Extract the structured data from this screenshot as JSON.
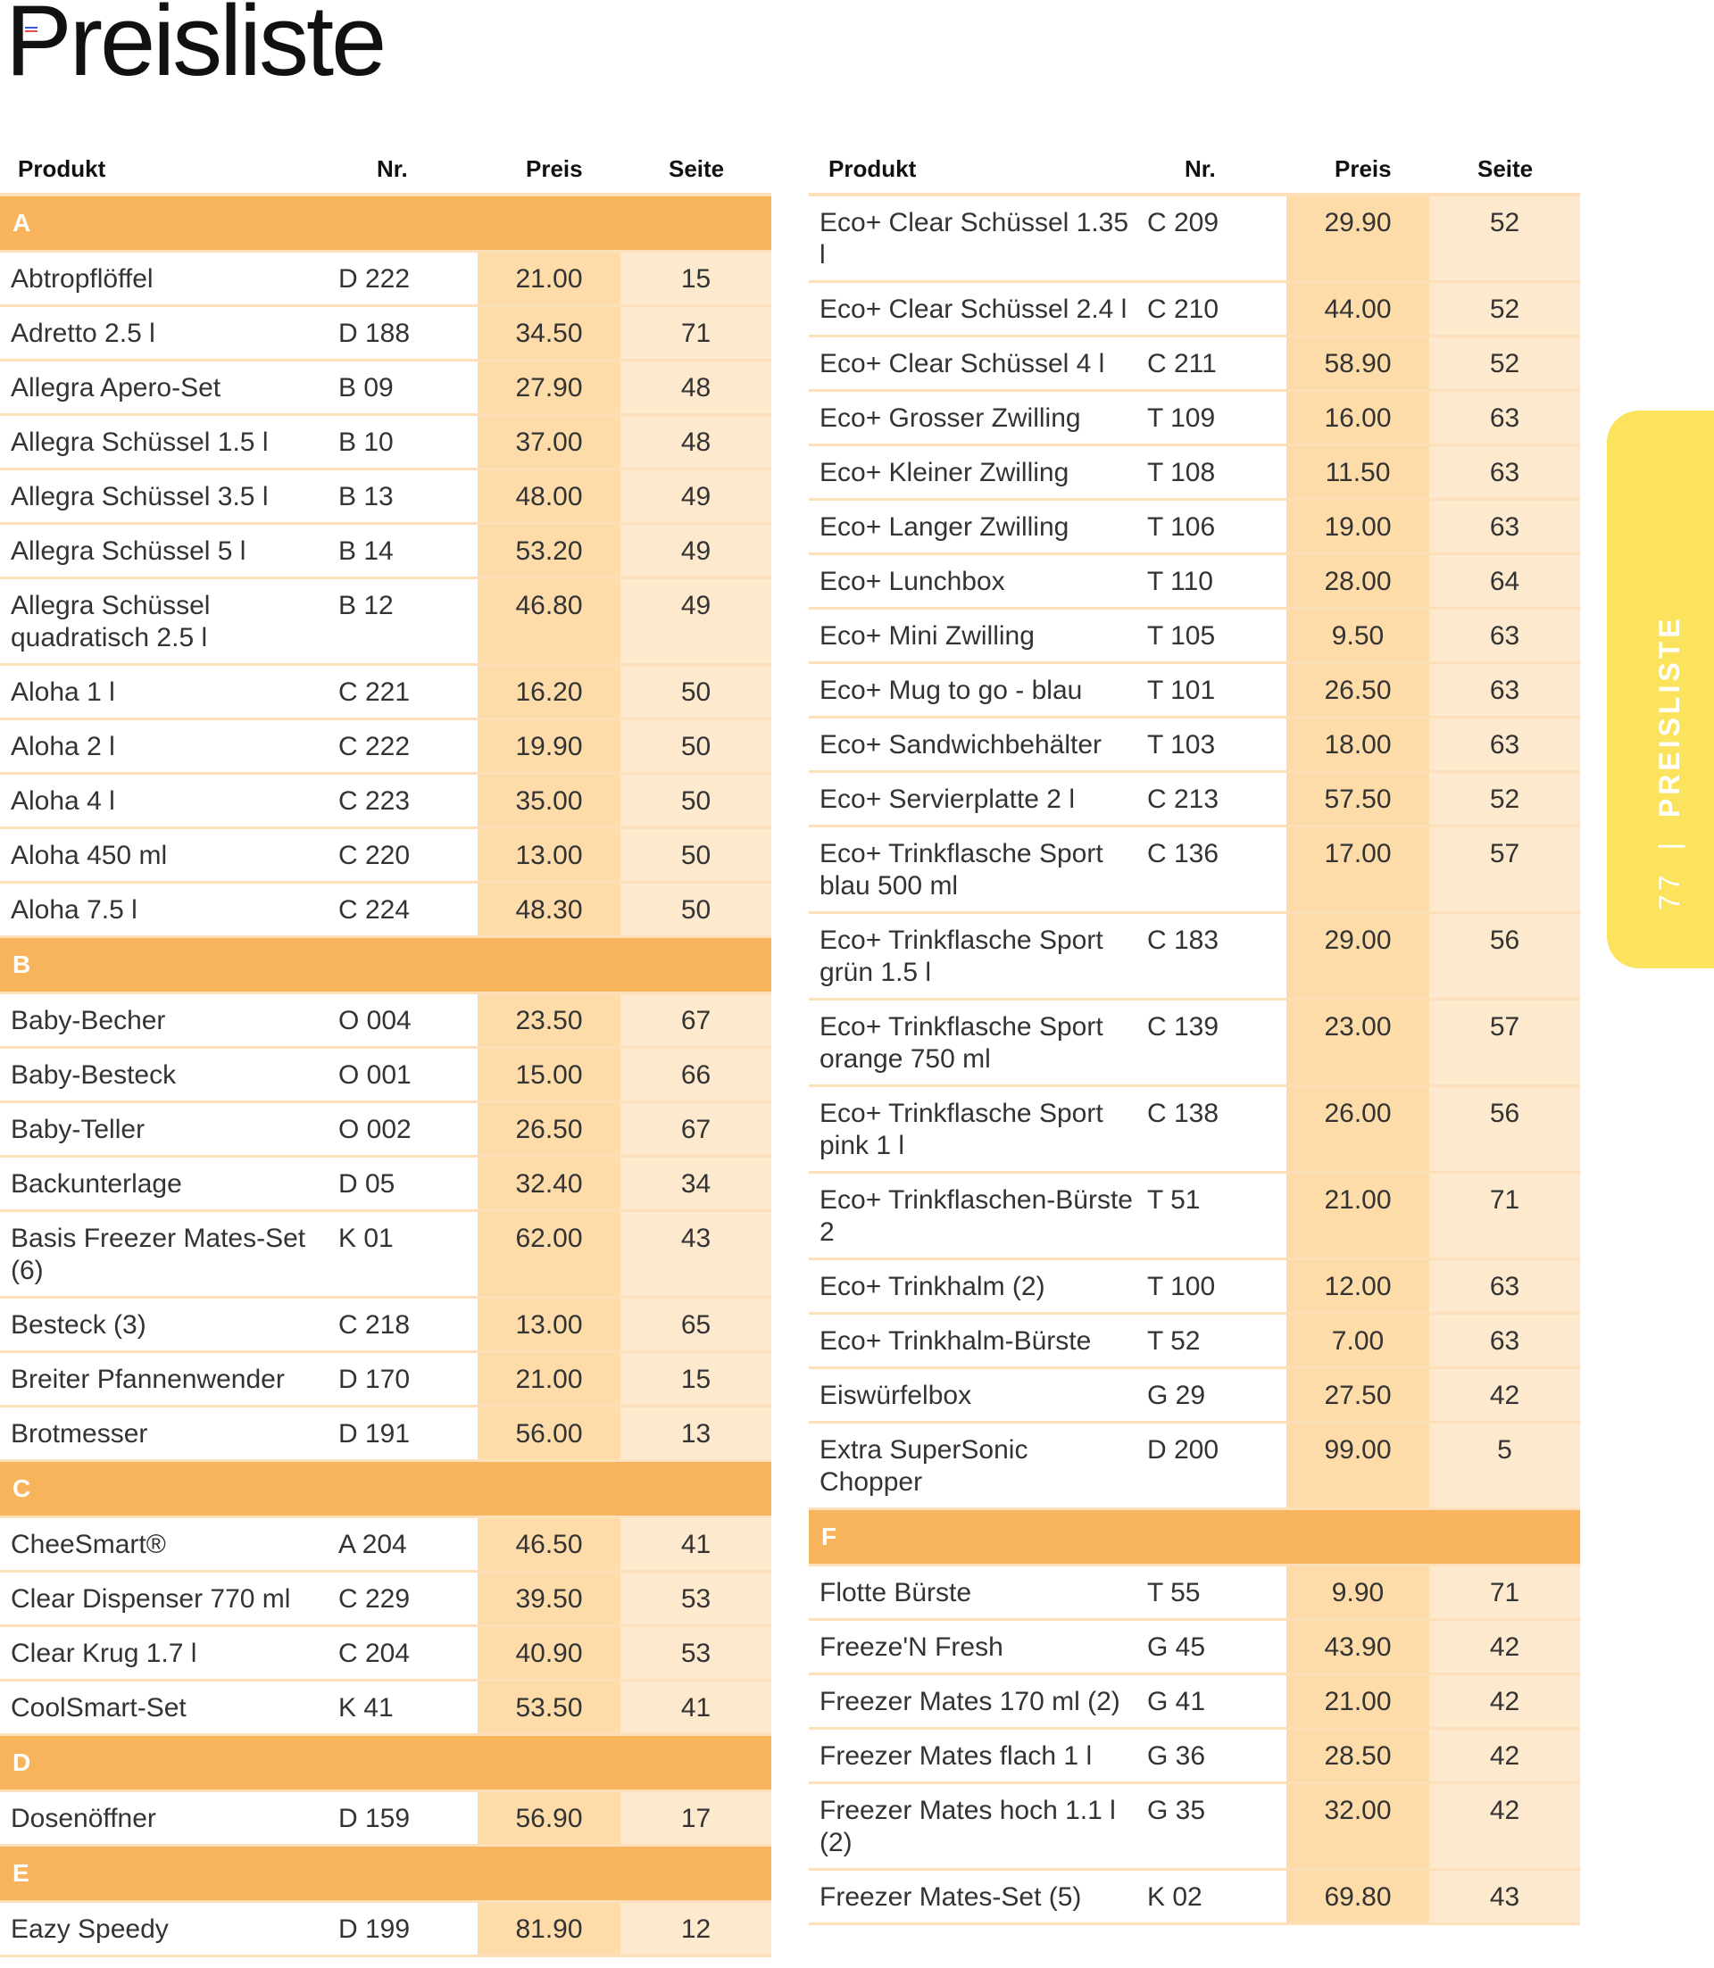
{
  "title": "Preisliste",
  "headers": {
    "produkt": "Produkt",
    "nr": "Nr.",
    "preis": "Preis",
    "seite": "Seite"
  },
  "side_tab": {
    "page": "77",
    "label": "PREISLISTE",
    "color": "#fbe35d"
  },
  "colors": {
    "section": "#f8b45c",
    "preis_col": "#fddcaa",
    "seite_col": "#fde9ce",
    "divider": "#fde0ba"
  },
  "left": [
    {
      "section": "A"
    },
    {
      "name": "Abtropflöffel",
      "nr": "D 222",
      "preis": "21.00",
      "seite": "15"
    },
    {
      "name": "Adretto 2.5 l",
      "nr": "D 188",
      "preis": "34.50",
      "seite": "71"
    },
    {
      "name": "Allegra Apero-Set",
      "nr": "B 09",
      "preis": "27.90",
      "seite": "48"
    },
    {
      "name": "Allegra Schüssel 1.5 l",
      "nr": "B 10",
      "preis": "37.00",
      "seite": "48"
    },
    {
      "name": "Allegra Schüssel 3.5 l",
      "nr": "B 13",
      "preis": "48.00",
      "seite": "49"
    },
    {
      "name": "Allegra Schüssel 5 l",
      "nr": "B 14",
      "preis": "53.20",
      "seite": "49"
    },
    {
      "name": "Allegra Schüssel quadratisch 2.5 l",
      "nr": "B 12",
      "preis": "46.80",
      "seite": "49"
    },
    {
      "name": "Aloha 1 l",
      "nr": "C 221",
      "preis": "16.20",
      "seite": "50"
    },
    {
      "name": "Aloha 2 l",
      "nr": "C 222",
      "preis": "19.90",
      "seite": "50"
    },
    {
      "name": "Aloha 4 l",
      "nr": "C 223",
      "preis": "35.00",
      "seite": "50"
    },
    {
      "name": "Aloha 450 ml",
      "nr": "C 220",
      "preis": "13.00",
      "seite": "50"
    },
    {
      "name": "Aloha 7.5 l",
      "nr": "C 224",
      "preis": "48.30",
      "seite": "50"
    },
    {
      "section": "B"
    },
    {
      "name": "Baby-Becher",
      "nr": "O 004",
      "preis": "23.50",
      "seite": "67"
    },
    {
      "name": "Baby-Besteck",
      "nr": "O 001",
      "preis": "15.00",
      "seite": "66"
    },
    {
      "name": "Baby-Teller",
      "nr": "O 002",
      "preis": "26.50",
      "seite": "67"
    },
    {
      "name": "Backunterlage",
      "nr": "D 05",
      "preis": "32.40",
      "seite": "34"
    },
    {
      "name": "Basis Freezer Mates-Set (6)",
      "nr": "K 01",
      "preis": "62.00",
      "seite": "43"
    },
    {
      "name": "Besteck (3)",
      "nr": "C 218",
      "preis": "13.00",
      "seite": "65"
    },
    {
      "name": "Breiter Pfannenwender",
      "nr": "D 170",
      "preis": "21.00",
      "seite": "15"
    },
    {
      "name": "Brotmesser",
      "nr": "D 191",
      "preis": "56.00",
      "seite": "13"
    },
    {
      "section": "C"
    },
    {
      "name": "CheeSmart®",
      "nr": "A 204",
      "preis": "46.50",
      "seite": "41"
    },
    {
      "name": "Clear Dispenser 770 ml",
      "nr": "C 229",
      "preis": "39.50",
      "seite": "53"
    },
    {
      "name": "Clear Krug 1.7 l",
      "nr": "C 204",
      "preis": "40.90",
      "seite": "53"
    },
    {
      "name": "CoolSmart-Set",
      "nr": "K 41",
      "preis": "53.50",
      "seite": "41"
    },
    {
      "section": "D"
    },
    {
      "name": "Dosenöffner",
      "nr": "D 159",
      "preis": "56.90",
      "seite": "17"
    },
    {
      "section": "E"
    },
    {
      "name": "Eazy Speedy",
      "nr": "D 199",
      "preis": "81.90",
      "seite": "12"
    }
  ],
  "right": [
    {
      "name": "Eco+ Clear Schüssel 1.35 l",
      "nr": "C 209",
      "preis": "29.90",
      "seite": "52"
    },
    {
      "name": "Eco+ Clear Schüssel 2.4 l",
      "nr": "C 210",
      "preis": "44.00",
      "seite": "52"
    },
    {
      "name": "Eco+ Clear Schüssel 4 l",
      "nr": "C 211",
      "preis": "58.90",
      "seite": "52"
    },
    {
      "name": "Eco+ Grosser Zwilling",
      "nr": "T 109",
      "preis": "16.00",
      "seite": "63"
    },
    {
      "name": "Eco+ Kleiner Zwilling",
      "nr": "T 108",
      "preis": "11.50",
      "seite": "63"
    },
    {
      "name": "Eco+ Langer Zwilling",
      "nr": "T 106",
      "preis": "19.00",
      "seite": "63"
    },
    {
      "name": "Eco+ Lunchbox",
      "nr": "T 110",
      "preis": "28.00",
      "seite": "64"
    },
    {
      "name": "Eco+ Mini Zwilling",
      "nr": "T 105",
      "preis": "9.50",
      "seite": "63"
    },
    {
      "name": "Eco+ Mug to go - blau",
      "nr": "T 101",
      "preis": "26.50",
      "seite": "63"
    },
    {
      "name": "Eco+ Sandwichbehälter",
      "nr": "T 103",
      "preis": "18.00",
      "seite": "63"
    },
    {
      "name": "Eco+ Servierplatte 2 l",
      "nr": "C 213",
      "preis": "57.50",
      "seite": "52"
    },
    {
      "name": "Eco+ Trinkflasche Sport blau 500 ml",
      "nr": "C 136",
      "preis": "17.00",
      "seite": "57"
    },
    {
      "name": "Eco+ Trinkflasche Sport grün 1.5 l",
      "nr": "C 183",
      "preis": "29.00",
      "seite": "56"
    },
    {
      "name": "Eco+ Trinkflasche Sport orange 750 ml",
      "nr": "C 139",
      "preis": "23.00",
      "seite": "57"
    },
    {
      "name": "Eco+ Trinkflasche Sport pink 1 l",
      "nr": "C 138",
      "preis": "26.00",
      "seite": "56"
    },
    {
      "name": "Eco+ Trinkflaschen-Bürste 2",
      "nr": "T 51",
      "preis": "21.00",
      "seite": "71"
    },
    {
      "name": "Eco+ Trinkhalm (2)",
      "nr": "T 100",
      "preis": "12.00",
      "seite": "63"
    },
    {
      "name": "Eco+ Trinkhalm-Bürste",
      "nr": "T 52",
      "preis": "7.00",
      "seite": "63"
    },
    {
      "name": "Eiswürfelbox",
      "nr": "G 29",
      "preis": "27.50",
      "seite": "42"
    },
    {
      "name": "Extra SuperSonic Chopper",
      "nr": "D 200",
      "preis": "99.00",
      "seite": "5"
    },
    {
      "section": "F"
    },
    {
      "name": "Flotte Bürste",
      "nr": "T 55",
      "preis": "9.90",
      "seite": "71"
    },
    {
      "name": "Freeze'N Fresh",
      "nr": "G 45",
      "preis": "43.90",
      "seite": "42"
    },
    {
      "name": "Freezer Mates 170 ml (2)",
      "nr": "G 41",
      "preis": "21.00",
      "seite": "42"
    },
    {
      "name": "Freezer Mates flach 1 l",
      "nr": "G 36",
      "preis": "28.50",
      "seite": "42"
    },
    {
      "name": "Freezer Mates hoch 1.1 l (2)",
      "nr": "G 35",
      "preis": "32.00",
      "seite": "42"
    },
    {
      "name": "Freezer Mates-Set (5)",
      "nr": "K 02",
      "preis": "69.80",
      "seite": "43"
    }
  ]
}
